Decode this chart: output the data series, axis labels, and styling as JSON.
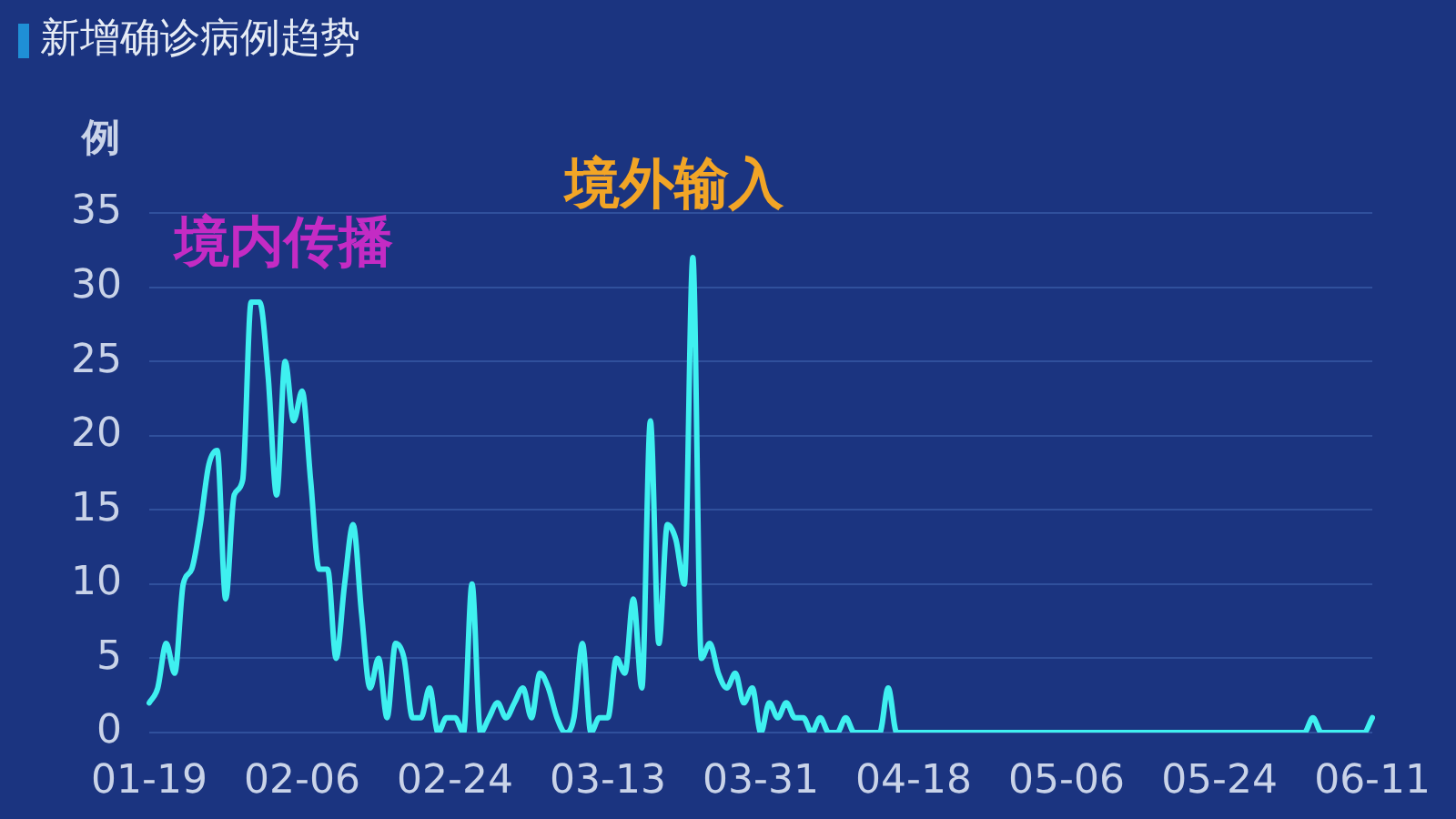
{
  "chart_data": {
    "type": "line",
    "title": "新增确诊病例趋势",
    "ylabel": "例",
    "annotations": [
      "境内传播",
      "境外输入"
    ],
    "categories": [
      "01-19",
      null,
      null,
      null,
      null,
      null,
      null,
      null,
      null,
      null,
      null,
      null,
      null,
      null,
      null,
      null,
      null,
      null,
      "02-06",
      null,
      null,
      null,
      null,
      null,
      null,
      null,
      null,
      null,
      null,
      null,
      null,
      null,
      null,
      null,
      null,
      null,
      "02-24",
      null,
      null,
      null,
      null,
      null,
      null,
      null,
      null,
      null,
      null,
      null,
      null,
      null,
      null,
      null,
      null,
      null,
      "03-13",
      null,
      null,
      null,
      null,
      null,
      null,
      null,
      null,
      null,
      null,
      null,
      null,
      null,
      null,
      null,
      null,
      null,
      "03-31",
      null,
      null,
      null,
      null,
      null,
      null,
      null,
      null,
      null,
      null,
      null,
      null,
      null,
      null,
      null,
      null,
      null,
      "04-18",
      null,
      null,
      null,
      null,
      null,
      null,
      null,
      null,
      null,
      null,
      null,
      null,
      null,
      null,
      null,
      null,
      null,
      "05-06",
      null,
      null,
      null,
      null,
      null,
      null,
      null,
      null,
      null,
      null,
      null,
      null,
      null,
      null,
      null,
      null,
      null,
      "05-24",
      null,
      null,
      null,
      null,
      null,
      null,
      null,
      null,
      null,
      null,
      null,
      null,
      null,
      null,
      null,
      null,
      null,
      "06-11"
    ],
    "values": [
      2,
      3,
      6,
      4,
      10,
      11,
      14,
      18,
      19,
      9,
      16,
      17,
      29,
      29,
      24,
      16,
      25,
      21,
      23,
      17,
      11,
      11,
      5,
      10,
      14,
      8,
      3,
      5,
      1,
      6,
      5,
      1,
      1,
      3,
      0,
      1,
      1,
      0,
      10,
      0,
      1,
      2,
      1,
      2,
      3,
      1,
      4,
      3,
      1,
      0,
      1,
      6,
      0,
      1,
      1,
      5,
      4,
      9,
      3,
      21,
      6,
      14,
      13,
      10,
      32,
      5,
      6,
      4,
      3,
      4,
      2,
      3,
      0,
      2,
      1,
      2,
      1,
      1,
      0,
      1,
      0,
      0,
      1,
      0,
      0,
      0,
      0,
      3,
      0,
      0,
      0,
      0,
      0,
      0,
      0,
      0,
      0,
      0,
      0,
      0,
      0,
      0,
      0,
      0,
      0,
      0,
      0,
      0,
      0,
      0,
      0,
      0,
      0,
      0,
      0,
      0,
      0,
      0,
      0,
      0,
      0,
      0,
      0,
      0,
      0,
      0,
      0,
      0,
      0,
      0,
      0,
      0,
      0,
      0,
      0,
      0,
      0,
      1,
      0,
      0,
      0,
      0,
      0,
      0,
      1
    ],
    "color": "#3ff0f0",
    "ylim": [
      0,
      35
    ],
    "yticks": [
      0,
      5,
      10,
      15,
      20,
      25,
      30,
      35
    ],
    "grid": "y",
    "marker": "none",
    "line_style": "solid"
  }
}
